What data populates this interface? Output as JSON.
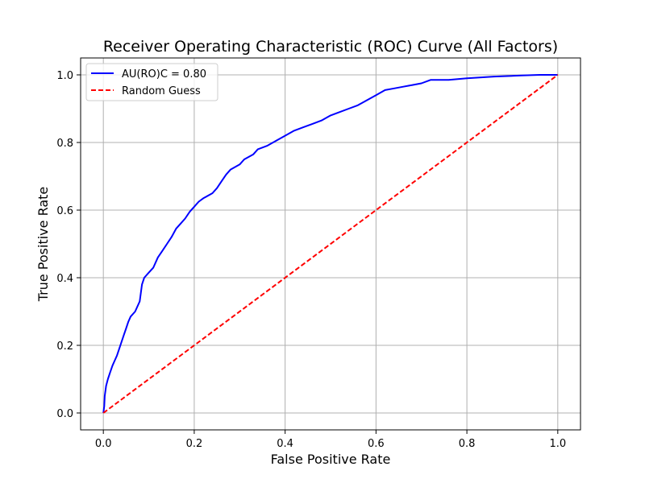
{
  "chart_data": {
    "type": "line",
    "title": "Receiver Operating Characteristic (ROC) Curve (All Factors)",
    "xlabel": "False Positive Rate",
    "ylabel": "True Positive Rate",
    "xlim": [
      -0.05,
      1.05
    ],
    "ylim": [
      -0.05,
      1.05
    ],
    "xticks": [
      "0.0",
      "0.2",
      "0.4",
      "0.6",
      "0.8",
      "1.0"
    ],
    "yticks": [
      "0.0",
      "0.2",
      "0.4",
      "0.6",
      "0.8",
      "1.0"
    ],
    "grid": true,
    "legend_position": "top-left",
    "series": [
      {
        "name": "AU(RO)C = 0.80",
        "color": "#0000ff",
        "style": "solid",
        "points": [
          [
            0.0,
            0.0
          ],
          [
            0.002,
            0.02
          ],
          [
            0.003,
            0.05
          ],
          [
            0.006,
            0.08
          ],
          [
            0.01,
            0.1
          ],
          [
            0.015,
            0.12
          ],
          [
            0.02,
            0.14
          ],
          [
            0.025,
            0.155
          ],
          [
            0.03,
            0.17
          ],
          [
            0.035,
            0.19
          ],
          [
            0.04,
            0.21
          ],
          [
            0.045,
            0.23
          ],
          [
            0.05,
            0.25
          ],
          [
            0.055,
            0.27
          ],
          [
            0.06,
            0.285
          ],
          [
            0.07,
            0.3
          ],
          [
            0.08,
            0.33
          ],
          [
            0.085,
            0.38
          ],
          [
            0.09,
            0.4
          ],
          [
            0.1,
            0.415
          ],
          [
            0.11,
            0.43
          ],
          [
            0.12,
            0.46
          ],
          [
            0.13,
            0.48
          ],
          [
            0.14,
            0.5
          ],
          [
            0.15,
            0.52
          ],
          [
            0.16,
            0.545
          ],
          [
            0.17,
            0.56
          ],
          [
            0.18,
            0.575
          ],
          [
            0.19,
            0.595
          ],
          [
            0.2,
            0.61
          ],
          [
            0.21,
            0.625
          ],
          [
            0.22,
            0.635
          ],
          [
            0.24,
            0.65
          ],
          [
            0.25,
            0.665
          ],
          [
            0.26,
            0.685
          ],
          [
            0.27,
            0.705
          ],
          [
            0.28,
            0.72
          ],
          [
            0.3,
            0.735
          ],
          [
            0.31,
            0.75
          ],
          [
            0.33,
            0.765
          ],
          [
            0.34,
            0.78
          ],
          [
            0.36,
            0.79
          ],
          [
            0.38,
            0.805
          ],
          [
            0.4,
            0.82
          ],
          [
            0.42,
            0.835
          ],
          [
            0.44,
            0.845
          ],
          [
            0.46,
            0.855
          ],
          [
            0.48,
            0.865
          ],
          [
            0.5,
            0.88
          ],
          [
            0.52,
            0.89
          ],
          [
            0.54,
            0.9
          ],
          [
            0.56,
            0.91
          ],
          [
            0.58,
            0.925
          ],
          [
            0.6,
            0.94
          ],
          [
            0.62,
            0.955
          ],
          [
            0.64,
            0.96
          ],
          [
            0.66,
            0.965
          ],
          [
            0.68,
            0.97
          ],
          [
            0.7,
            0.975
          ],
          [
            0.72,
            0.985
          ],
          [
            0.76,
            0.985
          ],
          [
            0.8,
            0.99
          ],
          [
            0.86,
            0.995
          ],
          [
            0.92,
            0.998
          ],
          [
            0.96,
            1.0
          ],
          [
            1.0,
            1.0
          ]
        ]
      },
      {
        "name": "Random Guess",
        "color": "#ff0000",
        "style": "dashed",
        "points": [
          [
            0.0,
            0.0
          ],
          [
            1.0,
            1.0
          ]
        ]
      }
    ]
  }
}
